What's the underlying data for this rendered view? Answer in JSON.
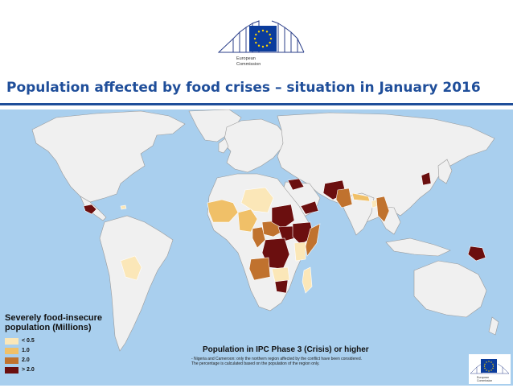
{
  "header": {
    "org_line1": "European",
    "org_line2": "Commission"
  },
  "title": "Population affected by food crises – situation in January 2016",
  "legend": {
    "title_line1": "Severely food-insecure",
    "title_line2": "population (Millions)",
    "items": [
      {
        "label": "< 0.5",
        "color": "#fbe7b8"
      },
      {
        "label": "1.0",
        "color": "#f0c068"
      },
      {
        "label": "2.0",
        "color": "#c0722e"
      },
      {
        "label": "> 2.0",
        "color": "#6b0f0f"
      }
    ]
  },
  "map": {
    "ocean_color": "#a9cfee",
    "land_color": "#f0f0f0",
    "countries": [
      {
        "name": "guatemala-honduras",
        "level": "> 2.0"
      },
      {
        "name": "haiti",
        "level": "< 0.5"
      },
      {
        "name": "bolivia",
        "level": "< 0.5"
      },
      {
        "name": "senegal-mali",
        "level": "1.0"
      },
      {
        "name": "niger-chad",
        "level": "< 0.5"
      },
      {
        "name": "nigeria",
        "level": "1.0"
      },
      {
        "name": "cameroon",
        "level": "2.0"
      },
      {
        "name": "car",
        "level": "2.0"
      },
      {
        "name": "sudan",
        "level": "> 2.0"
      },
      {
        "name": "south-sudan",
        "level": "> 2.0"
      },
      {
        "name": "ethiopia",
        "level": "> 2.0"
      },
      {
        "name": "somalia",
        "level": "2.0"
      },
      {
        "name": "kenya",
        "level": "< 0.5"
      },
      {
        "name": "drc",
        "level": "> 2.0"
      },
      {
        "name": "angola",
        "level": "2.0"
      },
      {
        "name": "zambia",
        "level": "< 0.5"
      },
      {
        "name": "malawi-zimbabwe",
        "level": "> 2.0"
      },
      {
        "name": "madagascar",
        "level": "< 0.5"
      },
      {
        "name": "yemen",
        "level": "> 2.0"
      },
      {
        "name": "syria-iraq",
        "level": "> 2.0"
      },
      {
        "name": "afghanistan",
        "level": "> 2.0"
      },
      {
        "name": "pakistan",
        "level": "2.0"
      },
      {
        "name": "nepal-india-region",
        "level": "1.0"
      },
      {
        "name": "bangladesh",
        "level": "< 0.5"
      },
      {
        "name": "myanmar",
        "level": "2.0"
      },
      {
        "name": "north-korea",
        "level": "> 2.0"
      },
      {
        "name": "papua-new-guinea",
        "level": "> 2.0"
      }
    ]
  },
  "ipc_title": "Population in IPC Phase 3 (Crisis) or higher",
  "footnote_line1": "- Nigeria and Cameroon: only the northern region affected by the conflict have been considered.",
  "footnote_line2": "The percentage is calculated based on the population of the region only."
}
